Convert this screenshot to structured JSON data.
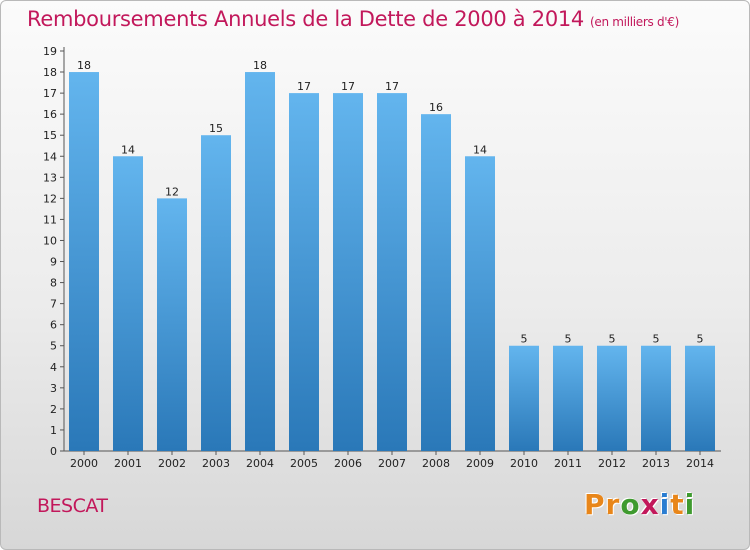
{
  "header": {
    "title": "Remboursements Annuels de la Dette de 2000 à 2014",
    "unit": "(en milliers d'€)"
  },
  "place": "BESCAT",
  "logo": {
    "letters": [
      "P",
      "r",
      "o",
      "x",
      "i",
      "t",
      "i"
    ],
    "colors": [
      "#e8861a",
      "#e8861a",
      "#3f9a2f",
      "#c2185b",
      "#2a7dd1",
      "#e8861a",
      "#3f9a2f"
    ]
  },
  "chart_data": {
    "type": "bar",
    "title": "Remboursements Annuels de la Dette de 2000 à 2014",
    "unit_label": "(en milliers d'€)",
    "categories": [
      "2000",
      "2001",
      "2002",
      "2003",
      "2004",
      "2005",
      "2006",
      "2007",
      "2008",
      "2009",
      "2010",
      "2011",
      "2012",
      "2013",
      "2014"
    ],
    "values": [
      18,
      14,
      12,
      15,
      18,
      17,
      17,
      17,
      16,
      14,
      5,
      5,
      5,
      5,
      5
    ],
    "ylim": [
      0,
      19
    ],
    "yticks": [
      0,
      1,
      2,
      3,
      4,
      5,
      6,
      7,
      8,
      9,
      10,
      11,
      12,
      13,
      14,
      15,
      16,
      17,
      18,
      19
    ],
    "colors": {
      "bar_top": "#63b5ee",
      "bar_bottom": "#2a78b8"
    },
    "grid": false,
    "show_value_labels": true
  }
}
